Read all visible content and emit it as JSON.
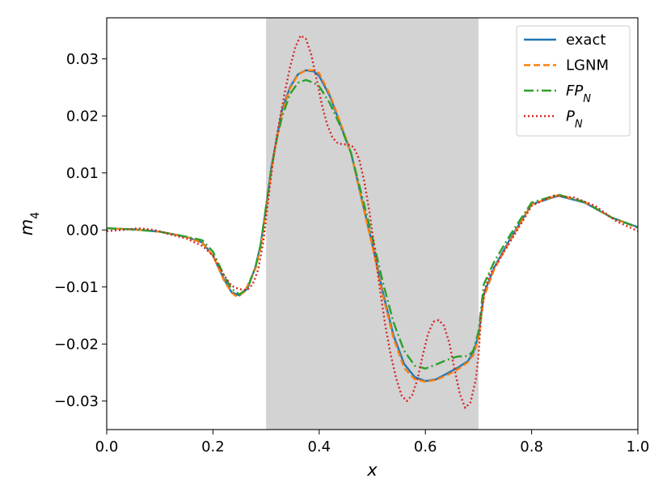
{
  "chart_data": {
    "type": "line",
    "xlabel": "x",
    "ylabel_base": "m",
    "ylabel_sub": "4",
    "xlim": [
      0.0,
      1.0
    ],
    "ylim": [
      -0.035,
      0.0372
    ],
    "shaded_region": [
      0.3,
      0.7
    ],
    "grid": false,
    "legend_position": "top-right",
    "x_ticks": [
      0.0,
      0.2,
      0.4,
      0.6,
      0.8,
      1.0
    ],
    "x_tick_labels": [
      "0.0",
      "0.2",
      "0.4",
      "0.6",
      "0.8",
      "1.0"
    ],
    "y_ticks": [
      -0.03,
      -0.02,
      -0.01,
      0.0,
      0.01,
      0.02,
      0.03
    ],
    "y_tick_labels": [
      "−0.03",
      "−0.02",
      "−0.01",
      "0.00",
      "0.01",
      "0.02",
      "0.03"
    ],
    "series": [
      {
        "name": "exact",
        "label_base": "exact",
        "label_sub": "",
        "label_italic": false,
        "color": "#1f77b4",
        "dash": "",
        "points": [
          [
            0.0,
            0.0003
          ],
          [
            0.05,
            0.0001
          ],
          [
            0.1,
            -0.0003
          ],
          [
            0.15,
            -0.0012
          ],
          [
            0.18,
            -0.0022
          ],
          [
            0.2,
            -0.0045
          ],
          [
            0.22,
            -0.0085
          ],
          [
            0.235,
            -0.0109
          ],
          [
            0.25,
            -0.0115
          ],
          [
            0.265,
            -0.0103
          ],
          [
            0.28,
            -0.0065
          ],
          [
            0.29,
            -0.0025
          ],
          [
            0.3,
            0.004
          ],
          [
            0.31,
            0.011
          ],
          [
            0.32,
            0.016
          ],
          [
            0.33,
            0.021
          ],
          [
            0.345,
            0.025
          ],
          [
            0.36,
            0.0273
          ],
          [
            0.375,
            0.028
          ],
          [
            0.39,
            0.0278
          ],
          [
            0.4,
            0.027
          ],
          [
            0.42,
            0.0235
          ],
          [
            0.44,
            0.0185
          ],
          [
            0.46,
            0.0135
          ],
          [
            0.48,
            0.0055
          ],
          [
            0.5,
            -0.0025
          ],
          [
            0.52,
            -0.011
          ],
          [
            0.54,
            -0.0185
          ],
          [
            0.56,
            -0.0235
          ],
          [
            0.58,
            -0.0258
          ],
          [
            0.6,
            -0.0265
          ],
          [
            0.62,
            -0.0262
          ],
          [
            0.64,
            -0.0252
          ],
          [
            0.66,
            -0.0242
          ],
          [
            0.68,
            -0.023
          ],
          [
            0.69,
            -0.0215
          ],
          [
            0.7,
            -0.0185
          ],
          [
            0.71,
            -0.0112
          ],
          [
            0.73,
            -0.0065
          ],
          [
            0.76,
            -0.0015
          ],
          [
            0.8,
            0.0045
          ],
          [
            0.85,
            0.006
          ],
          [
            0.9,
            0.0048
          ],
          [
            0.95,
            0.0022
          ],
          [
            1.0,
            0.0005
          ]
        ]
      },
      {
        "name": "LGNM",
        "label_base": "LGNM",
        "label_sub": "",
        "label_italic": false,
        "color": "#ff7f0e",
        "dash": "8,4",
        "points": [
          [
            0.0,
            0.0003
          ],
          [
            0.05,
            0.0001
          ],
          [
            0.1,
            -0.0003
          ],
          [
            0.15,
            -0.0012
          ],
          [
            0.18,
            -0.0023
          ],
          [
            0.2,
            -0.0045
          ],
          [
            0.22,
            -0.0087
          ],
          [
            0.235,
            -0.011
          ],
          [
            0.245,
            -0.0117
          ],
          [
            0.26,
            -0.0108
          ],
          [
            0.28,
            -0.0068
          ],
          [
            0.29,
            -0.003
          ],
          [
            0.3,
            0.0035
          ],
          [
            0.31,
            0.0105
          ],
          [
            0.32,
            0.0158
          ],
          [
            0.33,
            0.0205
          ],
          [
            0.345,
            0.0248
          ],
          [
            0.36,
            0.0272
          ],
          [
            0.375,
            0.028
          ],
          [
            0.39,
            0.028
          ],
          [
            0.4,
            0.0275
          ],
          [
            0.42,
            0.0238
          ],
          [
            0.44,
            0.0188
          ],
          [
            0.46,
            0.0135
          ],
          [
            0.48,
            0.0052
          ],
          [
            0.5,
            -0.0028
          ],
          [
            0.52,
            -0.0115
          ],
          [
            0.54,
            -0.019
          ],
          [
            0.56,
            -0.0242
          ],
          [
            0.58,
            -0.0262
          ],
          [
            0.6,
            -0.0266
          ],
          [
            0.62,
            -0.0263
          ],
          [
            0.64,
            -0.0255
          ],
          [
            0.66,
            -0.0245
          ],
          [
            0.68,
            -0.0232
          ],
          [
            0.69,
            -0.022
          ],
          [
            0.7,
            -0.019
          ],
          [
            0.71,
            -0.0118
          ],
          [
            0.73,
            -0.0068
          ],
          [
            0.76,
            -0.0018
          ],
          [
            0.8,
            0.0045
          ],
          [
            0.85,
            0.0061
          ],
          [
            0.9,
            0.0049
          ],
          [
            0.95,
            0.0022
          ],
          [
            1.0,
            0.0004
          ]
        ]
      },
      {
        "name": "FP_N",
        "label_base": "FP",
        "label_sub": "N",
        "label_italic": true,
        "color": "#2ca02c",
        "dash": "12,4,2,4",
        "points": [
          [
            0.0,
            0.0003
          ],
          [
            0.05,
            0.0001
          ],
          [
            0.1,
            -0.0003
          ],
          [
            0.15,
            -0.0012
          ],
          [
            0.18,
            -0.0018
          ],
          [
            0.2,
            -0.0038
          ],
          [
            0.22,
            -0.0078
          ],
          [
            0.235,
            -0.0103
          ],
          [
            0.25,
            -0.0113
          ],
          [
            0.265,
            -0.0102
          ],
          [
            0.28,
            -0.0065
          ],
          [
            0.29,
            -0.0025
          ],
          [
            0.3,
            0.0042
          ],
          [
            0.31,
            0.0108
          ],
          [
            0.32,
            0.0158
          ],
          [
            0.33,
            0.0198
          ],
          [
            0.345,
            0.0238
          ],
          [
            0.36,
            0.0258
          ],
          [
            0.375,
            0.0263
          ],
          [
            0.39,
            0.0258
          ],
          [
            0.4,
            0.0252
          ],
          [
            0.42,
            0.0222
          ],
          [
            0.44,
            0.0182
          ],
          [
            0.46,
            0.0135
          ],
          [
            0.48,
            0.0062
          ],
          [
            0.5,
            -0.0012
          ],
          [
            0.52,
            -0.0092
          ],
          [
            0.54,
            -0.0162
          ],
          [
            0.56,
            -0.0212
          ],
          [
            0.58,
            -0.0238
          ],
          [
            0.6,
            -0.0243
          ],
          [
            0.62,
            -0.0236
          ],
          [
            0.64,
            -0.0228
          ],
          [
            0.66,
            -0.0222
          ],
          [
            0.68,
            -0.0221
          ],
          [
            0.69,
            -0.0212
          ],
          [
            0.7,
            -0.0178
          ],
          [
            0.71,
            -0.0095
          ],
          [
            0.73,
            -0.0055
          ],
          [
            0.76,
            -0.0008
          ],
          [
            0.8,
            0.0048
          ],
          [
            0.85,
            0.0062
          ],
          [
            0.9,
            0.0049
          ],
          [
            0.95,
            0.0022
          ],
          [
            1.0,
            0.0004
          ]
        ]
      },
      {
        "name": "P_N",
        "label_base": "P",
        "label_sub": "N",
        "label_italic": true,
        "color": "#d62728",
        "dash": "2,3",
        "points": [
          [
            0.0,
            -0.0002
          ],
          [
            0.03,
            0.0
          ],
          [
            0.06,
            0.0003
          ],
          [
            0.09,
            0.0
          ],
          [
            0.12,
            -0.0008
          ],
          [
            0.15,
            -0.0015
          ],
          [
            0.18,
            -0.0028
          ],
          [
            0.2,
            -0.0045
          ],
          [
            0.22,
            -0.0078
          ],
          [
            0.235,
            -0.0098
          ],
          [
            0.25,
            -0.0104
          ],
          [
            0.265,
            -0.0105
          ],
          [
            0.275,
            -0.0095
          ],
          [
            0.285,
            -0.007
          ],
          [
            0.295,
            -0.002
          ],
          [
            0.305,
            0.006
          ],
          [
            0.315,
            0.0135
          ],
          [
            0.325,
            0.019
          ],
          [
            0.335,
            0.024
          ],
          [
            0.345,
            0.0285
          ],
          [
            0.355,
            0.032
          ],
          [
            0.365,
            0.0341
          ],
          [
            0.375,
            0.0335
          ],
          [
            0.385,
            0.0308
          ],
          [
            0.395,
            0.0265
          ],
          [
            0.405,
            0.022
          ],
          [
            0.415,
            0.0185
          ],
          [
            0.425,
            0.0162
          ],
          [
            0.435,
            0.0152
          ],
          [
            0.445,
            0.015
          ],
          [
            0.455,
            0.015
          ],
          [
            0.465,
            0.0145
          ],
          [
            0.475,
            0.0125
          ],
          [
            0.485,
            0.0085
          ],
          [
            0.495,
            0.003
          ],
          [
            0.505,
            -0.0038
          ],
          [
            0.515,
            -0.0108
          ],
          [
            0.525,
            -0.017
          ],
          [
            0.535,
            -0.022
          ],
          [
            0.545,
            -0.026
          ],
          [
            0.555,
            -0.029
          ],
          [
            0.565,
            -0.03
          ],
          [
            0.575,
            -0.029
          ],
          [
            0.585,
            -0.0262
          ],
          [
            0.595,
            -0.022
          ],
          [
            0.605,
            -0.0182
          ],
          [
            0.615,
            -0.0161
          ],
          [
            0.625,
            -0.0158
          ],
          [
            0.635,
            -0.0168
          ],
          [
            0.645,
            -0.0198
          ],
          [
            0.655,
            -0.0245
          ],
          [
            0.665,
            -0.0288
          ],
          [
            0.675,
            -0.0312
          ],
          [
            0.685,
            -0.0302
          ],
          [
            0.695,
            -0.0262
          ],
          [
            0.7,
            -0.022
          ],
          [
            0.705,
            -0.015
          ],
          [
            0.712,
            -0.0105
          ],
          [
            0.72,
            -0.008
          ],
          [
            0.73,
            -0.0065
          ],
          [
            0.75,
            -0.0035
          ],
          [
            0.77,
            -0.0005
          ],
          [
            0.8,
            0.0042
          ],
          [
            0.84,
            0.006
          ],
          [
            0.88,
            0.0057
          ],
          [
            0.92,
            0.0042
          ],
          [
            0.96,
            0.0015
          ],
          [
            1.0,
            -0.0002
          ]
        ]
      }
    ]
  }
}
